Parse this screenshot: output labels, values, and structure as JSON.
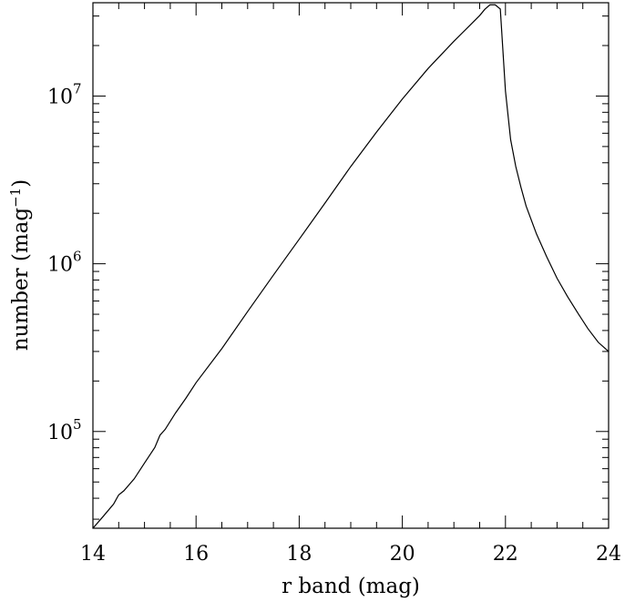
{
  "chart_data": {
    "type": "line",
    "title": "",
    "xlabel": "r band (mag)",
    "ylabel": "number (mag",
    "ylabel_sup": "−1",
    "ylabel_close": ")",
    "xlim": [
      14,
      24
    ],
    "ylim": [
      26500,
      36000000
    ],
    "yscale": "log",
    "grid": false,
    "x_ticks": [
      {
        "value": 14,
        "label": "14"
      },
      {
        "value": 16,
        "label": "16"
      },
      {
        "value": 18,
        "label": "18"
      },
      {
        "value": 20,
        "label": "20"
      },
      {
        "value": 22,
        "label": "22"
      },
      {
        "value": 24,
        "label": "24"
      }
    ],
    "y_ticks": [
      {
        "value": 100000,
        "base": "10",
        "exp": "5"
      },
      {
        "value": 1000000,
        "base": "10",
        "exp": "6"
      },
      {
        "value": 10000000,
        "base": "10",
        "exp": "7"
      }
    ],
    "series": [
      {
        "x": [
          14.0,
          14.2,
          14.4,
          14.5,
          14.6,
          14.8,
          15.0,
          15.2,
          15.3,
          15.4,
          15.6,
          15.8,
          16.0,
          16.5,
          17.0,
          17.5,
          18.0,
          18.5,
          19.0,
          19.5,
          20.0,
          20.5,
          21.0,
          21.3,
          21.5,
          21.6,
          21.7,
          21.8,
          21.9,
          22.0,
          22.1,
          22.2,
          22.3,
          22.4,
          22.6,
          22.8,
          23.0,
          23.2,
          23.4,
          23.6,
          23.8,
          24.0
        ],
        "y": [
          26500,
          31200,
          36900,
          41900,
          44300,
          52200,
          64800,
          80300,
          95000,
          102800,
          128700,
          157400,
          195400,
          312000,
          519000,
          856000,
          1400000,
          2300000,
          3800000,
          6100000,
          9600000,
          14600000,
          21200000,
          26200000,
          30200000,
          32900000,
          35000000,
          35000000,
          33000000,
          10700000,
          5500000,
          3800000,
          2860000,
          2210000,
          1510000,
          1100000,
          820000,
          640000,
          510000,
          410000,
          340000,
          300000
        ]
      }
    ]
  }
}
